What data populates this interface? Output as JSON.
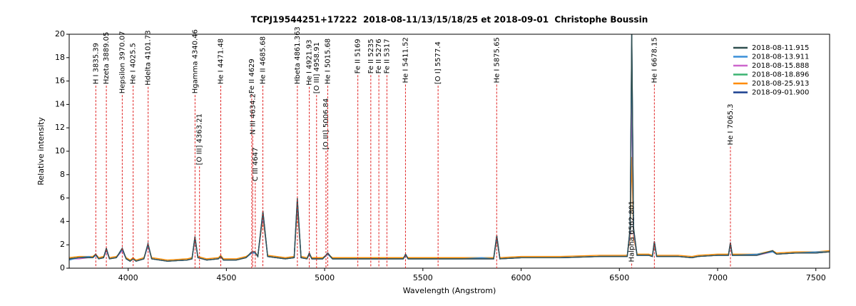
{
  "chart_data": {
    "type": "line",
    "title": "TCPJ19544251+17222  2018-08-11/13/15/18/25 et 2018-09-01  Christophe Boussin",
    "xlabel": "Wavelength (Angstrom)",
    "ylabel": "Relative intensity",
    "xlim": [
      3700,
      7570
    ],
    "ylim": [
      0,
      20
    ],
    "xticks": [
      4000,
      4500,
      5000,
      5500,
      6000,
      6500,
      7000,
      7500
    ],
    "yticks": [
      0,
      2,
      4,
      6,
      8,
      10,
      12,
      14,
      16,
      18,
      20
    ],
    "legend": "upper right",
    "x": [
      3700,
      3750,
      3800,
      3820,
      3835,
      3850,
      3875,
      3889,
      3905,
      3940,
      3970,
      3990,
      4010,
      4025,
      4040,
      4080,
      4101,
      4120,
      4200,
      4300,
      4325,
      4340,
      4355,
      4400,
      4460,
      4471,
      4485,
      4550,
      4600,
      4629,
      4645,
      4660,
      4686,
      4710,
      4800,
      4845,
      4861,
      4880,
      4910,
      4922,
      4935,
      4990,
      5016,
      5040,
      5100,
      5200,
      5300,
      5400,
      5412,
      5425,
      5500,
      5600,
      5700,
      5800,
      5860,
      5876,
      5892,
      6000,
      6200,
      6400,
      6500,
      6540,
      6555,
      6563,
      6572,
      6590,
      6650,
      6668,
      6678,
      6690,
      6800,
      6870,
      6900,
      7000,
      7055,
      7065,
      7075,
      7200,
      7280,
      7300,
      7400,
      7500,
      7570
    ],
    "series": [
      {
        "name": "2018-08-11.915",
        "color": "#2f4f4f",
        "values": [
          0.8,
          0.9,
          0.9,
          0.9,
          1.2,
          0.8,
          0.9,
          1.7,
          0.8,
          0.9,
          1.7,
          0.8,
          0.6,
          0.8,
          0.6,
          0.8,
          2.1,
          0.8,
          0.6,
          0.7,
          0.8,
          2.7,
          0.9,
          0.7,
          0.8,
          1.0,
          0.7,
          0.7,
          0.9,
          1.4,
          1.4,
          1.0,
          4.9,
          1.0,
          0.8,
          0.9,
          6.0,
          0.9,
          0.8,
          1.3,
          0.8,
          0.8,
          1.3,
          0.8,
          0.8,
          0.8,
          0.8,
          0.8,
          1.2,
          0.8,
          0.8,
          0.8,
          0.8,
          0.8,
          0.8,
          2.8,
          0.8,
          0.9,
          0.9,
          1.0,
          1.0,
          1.0,
          3.5,
          20.5,
          3.5,
          1.1,
          1.1,
          1.0,
          2.3,
          1.0,
          1.0,
          0.9,
          1.0,
          1.1,
          1.1,
          2.2,
          1.1,
          1.1,
          1.5,
          1.2,
          1.3,
          1.3,
          1.4
        ]
      },
      {
        "name": "2018-08-13.911",
        "color": "#3a8fd8",
        "values": [
          0.7,
          0.9,
          1.0,
          0.9,
          1.1,
          0.8,
          0.9,
          1.6,
          0.8,
          0.9,
          1.6,
          0.8,
          0.6,
          0.8,
          0.6,
          0.8,
          2.0,
          0.8,
          0.6,
          0.7,
          0.8,
          2.6,
          0.9,
          0.7,
          0.8,
          1.0,
          0.7,
          0.7,
          0.9,
          1.3,
          1.3,
          1.0,
          4.7,
          1.0,
          0.8,
          0.9,
          5.8,
          0.9,
          0.8,
          1.2,
          0.8,
          0.8,
          1.2,
          0.8,
          0.8,
          0.8,
          0.8,
          0.8,
          1.1,
          0.8,
          0.8,
          0.8,
          0.8,
          0.9,
          0.8,
          2.7,
          0.8,
          0.9,
          0.9,
          1.0,
          1.0,
          1.0,
          3.3,
          19.0,
          3.3,
          1.1,
          1.1,
          1.0,
          2.2,
          1.0,
          1.0,
          0.9,
          1.0,
          1.1,
          1.1,
          2.1,
          1.1,
          1.2,
          1.4,
          1.2,
          1.3,
          1.4,
          1.4
        ]
      },
      {
        "name": "2018-08-15.888",
        "color": "#cc66cc",
        "values": [
          0.8,
          0.8,
          0.9,
          0.9,
          1.1,
          0.8,
          0.9,
          1.5,
          0.8,
          0.9,
          1.5,
          0.8,
          0.6,
          0.8,
          0.6,
          0.8,
          1.9,
          0.8,
          0.6,
          0.7,
          0.8,
          2.5,
          0.9,
          0.7,
          0.8,
          1.0,
          0.7,
          0.7,
          0.9,
          1.3,
          1.3,
          1.0,
          4.5,
          1.0,
          0.8,
          0.9,
          5.5,
          0.9,
          0.8,
          1.2,
          0.8,
          0.8,
          1.2,
          0.8,
          0.8,
          0.8,
          0.8,
          0.8,
          1.1,
          0.8,
          0.8,
          0.8,
          0.8,
          0.8,
          0.8,
          2.6,
          0.8,
          0.9,
          0.9,
          1.0,
          1.0,
          1.0,
          3.0,
          15.0,
          3.0,
          1.1,
          1.1,
          1.0,
          2.1,
          1.0,
          1.0,
          0.9,
          1.0,
          1.1,
          1.1,
          2.0,
          1.1,
          1.1,
          1.4,
          1.2,
          1.3,
          1.3,
          1.4
        ]
      },
      {
        "name": "2018-08-18.896",
        "color": "#3cb371",
        "values": [
          0.8,
          0.9,
          0.9,
          0.9,
          1.1,
          0.8,
          0.9,
          1.6,
          0.8,
          0.9,
          1.6,
          0.8,
          0.6,
          0.8,
          0.6,
          0.8,
          2.0,
          0.8,
          0.6,
          0.7,
          0.8,
          2.6,
          0.9,
          0.7,
          0.8,
          1.0,
          0.7,
          0.7,
          0.9,
          1.3,
          1.3,
          1.0,
          4.6,
          1.0,
          0.8,
          0.9,
          5.6,
          0.9,
          0.8,
          1.2,
          0.8,
          0.8,
          1.2,
          0.8,
          0.8,
          0.8,
          0.8,
          0.8,
          1.1,
          0.8,
          0.8,
          0.8,
          0.8,
          0.8,
          0.8,
          2.6,
          0.8,
          0.9,
          0.9,
          1.0,
          1.0,
          1.0,
          3.1,
          15.2,
          3.1,
          1.1,
          1.1,
          1.0,
          2.1,
          1.0,
          1.0,
          0.9,
          1.0,
          1.1,
          1.1,
          2.0,
          1.1,
          1.1,
          1.4,
          1.2,
          1.3,
          1.3,
          1.4
        ]
      },
      {
        "name": "2018-08-25.913",
        "color": "#ff8c00",
        "values": [
          0.9,
          1.0,
          1.0,
          1.0,
          1.2,
          0.9,
          1.0,
          1.5,
          0.9,
          1.0,
          1.5,
          0.9,
          0.7,
          0.9,
          0.7,
          0.9,
          1.9,
          0.9,
          0.7,
          0.8,
          0.9,
          2.4,
          1.0,
          0.8,
          0.9,
          1.1,
          0.8,
          0.8,
          1.0,
          1.3,
          1.3,
          1.1,
          4.2,
          1.1,
          0.9,
          1.0,
          5.0,
          1.0,
          0.9,
          1.2,
          0.9,
          0.9,
          1.2,
          0.9,
          0.9,
          0.9,
          0.9,
          0.9,
          1.1,
          0.9,
          0.9,
          0.9,
          0.9,
          0.9,
          0.9,
          2.4,
          0.9,
          1.0,
          1.0,
          1.1,
          1.1,
          1.1,
          2.6,
          9.5,
          2.6,
          1.2,
          1.2,
          1.1,
          1.9,
          1.1,
          1.1,
          1.0,
          1.1,
          1.2,
          1.2,
          1.9,
          1.2,
          1.2,
          1.5,
          1.3,
          1.4,
          1.4,
          1.5
        ]
      },
      {
        "name": "2018-09-01.900",
        "color": "#1a3f8f",
        "values": [
          0.8,
          0.9,
          0.9,
          0.9,
          1.2,
          0.8,
          0.9,
          1.7,
          0.8,
          0.9,
          1.7,
          0.8,
          0.6,
          0.8,
          0.6,
          0.8,
          2.1,
          0.8,
          0.6,
          0.7,
          0.8,
          2.7,
          0.9,
          0.7,
          0.8,
          1.0,
          0.7,
          0.7,
          0.9,
          1.4,
          1.4,
          1.0,
          4.8,
          1.0,
          0.8,
          0.9,
          5.9,
          0.9,
          0.8,
          1.3,
          0.8,
          0.8,
          1.3,
          0.8,
          0.8,
          0.8,
          0.8,
          0.8,
          1.2,
          0.8,
          0.8,
          0.8,
          0.8,
          0.8,
          0.8,
          2.8,
          0.8,
          0.9,
          0.9,
          1.0,
          1.0,
          1.0,
          3.4,
          20.2,
          3.4,
          1.1,
          1.1,
          1.0,
          2.3,
          1.0,
          1.0,
          0.9,
          1.0,
          1.1,
          1.1,
          2.2,
          1.1,
          1.1,
          1.5,
          1.2,
          1.3,
          1.3,
          1.4
        ]
      }
    ],
    "annotations": [
      {
        "x": 3835.39,
        "y": 15.6,
        "label": "H I 3835.39"
      },
      {
        "x": 3889.05,
        "y": 15.6,
        "label": "Hzeta 3889.05"
      },
      {
        "x": 3970.07,
        "y": 14.8,
        "label": "Hepsilon 3970.07"
      },
      {
        "x": 4025.5,
        "y": 15.6,
        "label": "He I 4025.5"
      },
      {
        "x": 4101.73,
        "y": 15.5,
        "label": "Hdelta 4101.73"
      },
      {
        "x": 4340.46,
        "y": 14.8,
        "label": "Hgamma 4340.46"
      },
      {
        "x": 4363.21,
        "y": 8.7,
        "label": "[O III] 4363.21"
      },
      {
        "x": 4471.48,
        "y": 15.6,
        "label": "He I 4471.48"
      },
      {
        "x": 4629,
        "y": 14.8,
        "label": "Fe II 4629"
      },
      {
        "x": 4634.2,
        "y": 11.3,
        "label": "N III 4634.2"
      },
      {
        "x": 4647,
        "y": 7.3,
        "label": "C III 4647"
      },
      {
        "x": 4685.68,
        "y": 15.6,
        "label": "He II 4685.68"
      },
      {
        "x": 4861.363,
        "y": 15.6,
        "label": "Hbeta 4861.363"
      },
      {
        "x": 4921.93,
        "y": 15.5,
        "label": "He I 4921.93"
      },
      {
        "x": 4958.91,
        "y": 14.8,
        "label": "[O III] 4958.91"
      },
      {
        "x": 5006.84,
        "y": 10.0,
        "label": "[O III] 5006.84"
      },
      {
        "x": 5015.68,
        "y": 15.6,
        "label": "He I 5015.68"
      },
      {
        "x": 5169,
        "y": 16.5,
        "label": "Fe II 5169"
      },
      {
        "x": 5235,
        "y": 16.5,
        "label": "Fe II 5235"
      },
      {
        "x": 5276,
        "y": 16.5,
        "label": "Fe II 5276"
      },
      {
        "x": 5317,
        "y": 16.5,
        "label": "Fe II 5317"
      },
      {
        "x": 5411.52,
        "y": 15.7,
        "label": "He I 5411.52"
      },
      {
        "x": 5577.4,
        "y": 15.6,
        "label": "[O I] 5577.4"
      },
      {
        "x": 5875.65,
        "y": 15.7,
        "label": "He I 5875.65"
      },
      {
        "x": 6562.801,
        "y": 0.4,
        "label": "Halpha 6562.801"
      },
      {
        "x": 6678.15,
        "y": 15.7,
        "label": "He I 6678.15"
      },
      {
        "x": 7065.3,
        "y": 10.4,
        "label": "He I 7065.3"
      }
    ]
  }
}
